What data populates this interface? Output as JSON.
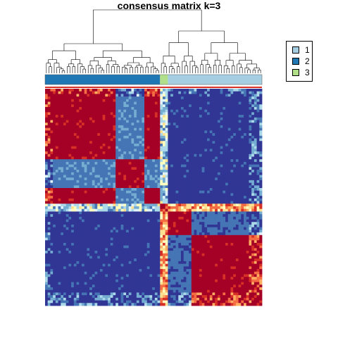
{
  "title": "consensus matrix k=3",
  "legend": {
    "items": [
      {
        "label": "1",
        "color": "#A6CEE3"
      },
      {
        "label": "2",
        "color": "#1F78B4"
      },
      {
        "label": "3",
        "color": "#B2DF8A"
      }
    ]
  },
  "colors": {
    "high": "#A50026",
    "low": "#313695",
    "scale": [
      "#313695",
      "#4575B4",
      "#74ADD1",
      "#ABD9E9",
      "#E0F3F8",
      "#FFFFBF",
      "#FEE090",
      "#FDAE61",
      "#F46D43",
      "#D73027",
      "#A50026"
    ]
  },
  "chart_data": {
    "type": "heatmap",
    "title": "consensus matrix k=3",
    "xlabel": "",
    "ylabel": "",
    "zlim": [
      0,
      1
    ],
    "legend_position": "top-right",
    "class_order": [
      "2",
      "3",
      "1"
    ],
    "class_counts": [
      44,
      3,
      36
    ],
    "blocks": [
      {
        "row_class": "2",
        "col_class": "2",
        "value": 1.0
      },
      {
        "row_class": "2",
        "col_class": "3",
        "value": 0.35
      },
      {
        "row_class": "2",
        "col_class": "1",
        "value": 0.0
      },
      {
        "row_class": "3",
        "col_class": "2",
        "value": 0.3
      },
      {
        "row_class": "3",
        "col_class": "3",
        "value": 1.0
      },
      {
        "row_class": "3",
        "col_class": "1",
        "value": 0.7
      },
      {
        "row_class": "1",
        "col_class": "2",
        "value": 0.0
      },
      {
        "row_class": "1",
        "col_class": "3",
        "value": 0.75
      },
      {
        "row_class": "1",
        "col_class": "1",
        "value": 1.0
      }
    ],
    "subblocks": [
      {
        "rows": "2b",
        "cols": "2b",
        "value": 0.0
      },
      {
        "rows": "1b",
        "cols": "1b",
        "value": 0.0
      }
    ]
  }
}
